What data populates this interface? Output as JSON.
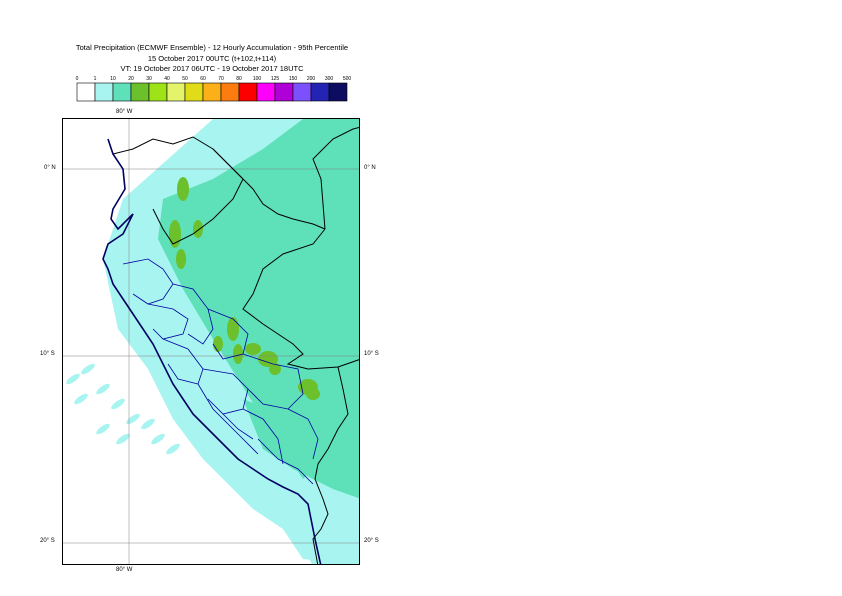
{
  "title": {
    "line1": "Total Precipitation (ECMWF Ensemble) - 12 Hourly Accumulation - 95th Percentile",
    "line2": "15 October 2017 00UTC (t+102,t+114)",
    "line3": "VT: 19 October 2017 06UTC - 19 October 2017 18UTC"
  },
  "legend": {
    "thresholds": [
      "0",
      "1",
      "10",
      "20",
      "30",
      "40",
      "50",
      "60",
      "70",
      "80",
      "100",
      "125",
      "150",
      "200",
      "300",
      "500"
    ],
    "colors": [
      "#ffffff",
      "#a8f4f0",
      "#5ee0b8",
      "#6cc02c",
      "#9ee218",
      "#e4f46a",
      "#e0dc18",
      "#fcb018",
      "#fc7c10",
      "#fc0000",
      "#fc00fc",
      "#b000d8",
      "#7c50fc",
      "#2424b4",
      "#0c0c60"
    ]
  },
  "map": {
    "lon_labels": {
      "top": "80° W",
      "bottom": "80° W"
    },
    "lat_labels": [
      {
        "left": "0° N",
        "right": "0° N"
      },
      {
        "left": "10° S",
        "right": "10° S"
      },
      {
        "left": "20° S",
        "right": "20° S"
      }
    ],
    "colors": {
      "land_light": "#a8f4f0",
      "mid": "#5ee0b8",
      "high": "#6cc02c",
      "coast": "#000060",
      "border": "#000000",
      "region": "#0000a0",
      "grid": "#808080"
    }
  }
}
